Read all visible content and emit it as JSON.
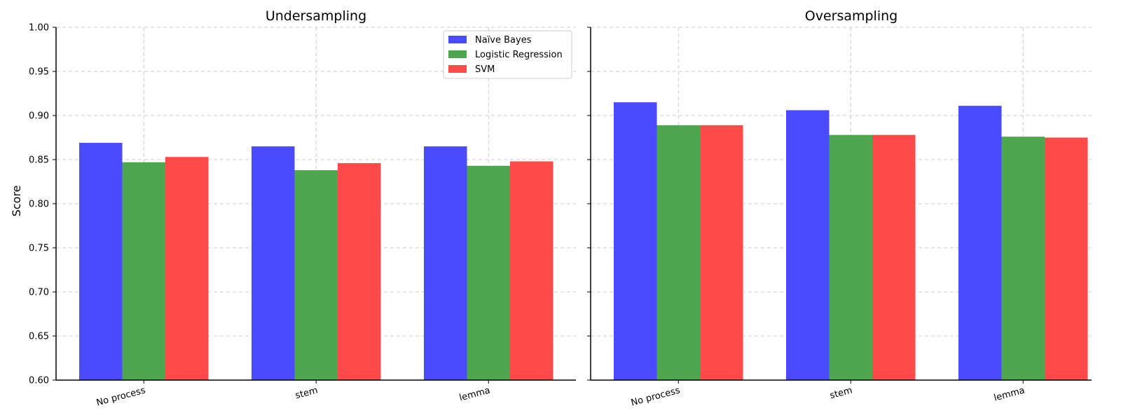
{
  "chart_data": {
    "type": "bar",
    "ylabel": "Score",
    "ylim": [
      0.6,
      1.0
    ],
    "yticks": [
      "0.60",
      "0.65",
      "0.70",
      "0.75",
      "0.80",
      "0.85",
      "0.90",
      "0.95",
      "1.00"
    ],
    "grid": true,
    "legend_placement": "top-right of first panel",
    "categories": [
      "No process",
      "stem",
      "lemma"
    ],
    "series_names": [
      "Naïve Bayes",
      "Logistic Regression",
      "SVM"
    ],
    "colors": [
      "#4a4aff",
      "#4ea64e",
      "#ff4a4a"
    ],
    "panels": [
      {
        "title": "Undersampling",
        "series": [
          {
            "name": "Naïve Bayes",
            "values": [
              0.869,
              0.865,
              0.865
            ]
          },
          {
            "name": "Logistic Regression",
            "values": [
              0.847,
              0.838,
              0.843
            ]
          },
          {
            "name": "SVM",
            "values": [
              0.853,
              0.846,
              0.848
            ]
          }
        ]
      },
      {
        "title": "Oversampling",
        "series": [
          {
            "name": "Naïve Bayes",
            "values": [
              0.915,
              0.906,
              0.911
            ]
          },
          {
            "name": "Logistic Regression",
            "values": [
              0.889,
              0.878,
              0.876
            ]
          },
          {
            "name": "SVM",
            "values": [
              0.889,
              0.878,
              0.875
            ]
          }
        ]
      }
    ]
  }
}
